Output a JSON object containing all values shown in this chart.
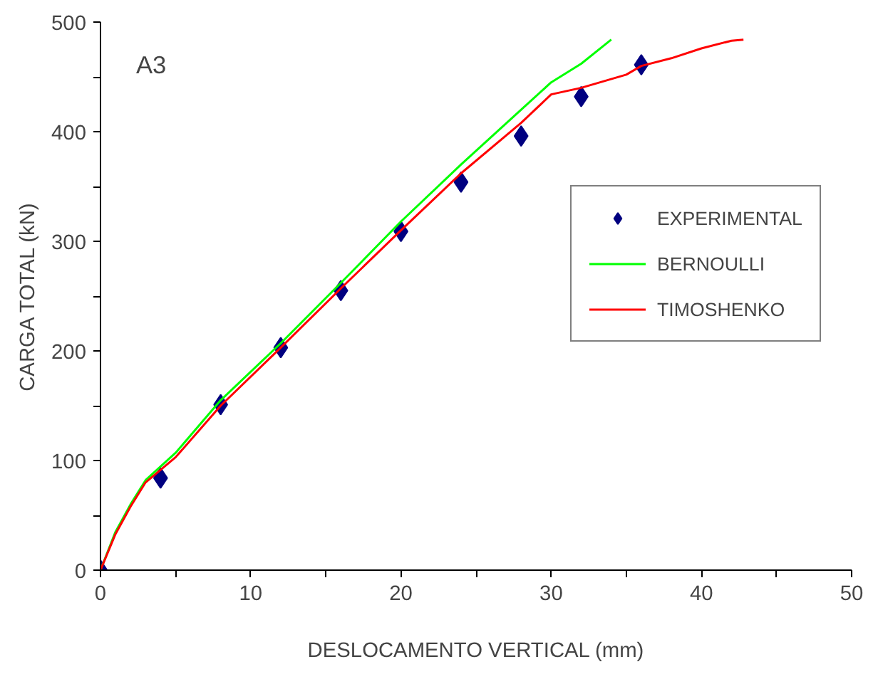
{
  "chart_data": {
    "type": "line",
    "annotations": [
      "A3"
    ],
    "xlabel": "DESLOCAMENTO VERTICAL (mm)",
    "ylabel": "CARGA TOTAL (kN)",
    "xlim": [
      0,
      50
    ],
    "ylim": [
      0,
      500
    ],
    "xticks": [
      0,
      {
        "value": 5,
        "label": null
      },
      10,
      {
        "value": 15,
        "label": null
      },
      20,
      {
        "value": 25,
        "label": null
      },
      30,
      {
        "value": 35,
        "label": null
      },
      40,
      {
        "value": 45,
        "label": null
      },
      50
    ],
    "yticks": [
      0,
      {
        "value": 50,
        "label": null
      },
      100,
      {
        "value": 150,
        "label": null
      },
      200,
      {
        "value": 250,
        "label": null
      },
      300,
      {
        "value": 350,
        "label": null
      },
      400,
      {
        "value": 450,
        "label": null
      },
      500
    ],
    "grid": false,
    "legend": "right",
    "series": [
      {
        "name": "EXPERIMENTAL",
        "type": "scatter",
        "marker": "diamond",
        "color": "#000080",
        "x": [
          0,
          4,
          8,
          12,
          16,
          20,
          24,
          28,
          32,
          36
        ],
        "values": [
          0,
          84,
          151,
          203,
          255,
          309,
          354,
          396,
          432,
          461
        ]
      },
      {
        "name": "BERNOULLI",
        "color": "#00ff00",
        "x": [
          0,
          1,
          2,
          3,
          5,
          8,
          12,
          16,
          20,
          24,
          28,
          30,
          32,
          34
        ],
        "values": [
          0,
          35,
          60,
          82,
          107,
          155,
          207,
          262,
          318,
          370,
          420,
          445,
          462,
          484
        ]
      },
      {
        "name": "TIMOSHENKO",
        "color": "#ff0000",
        "x": [
          0,
          1,
          2,
          3,
          5,
          8,
          12,
          16,
          20,
          24,
          28,
          30,
          32,
          35,
          36,
          38,
          40,
          42,
          42.8
        ],
        "values": [
          0,
          33,
          58,
          80,
          103,
          150,
          203,
          257,
          310,
          362,
          408,
          434,
          440,
          452,
          460,
          467,
          476,
          483,
          484
        ]
      }
    ]
  }
}
